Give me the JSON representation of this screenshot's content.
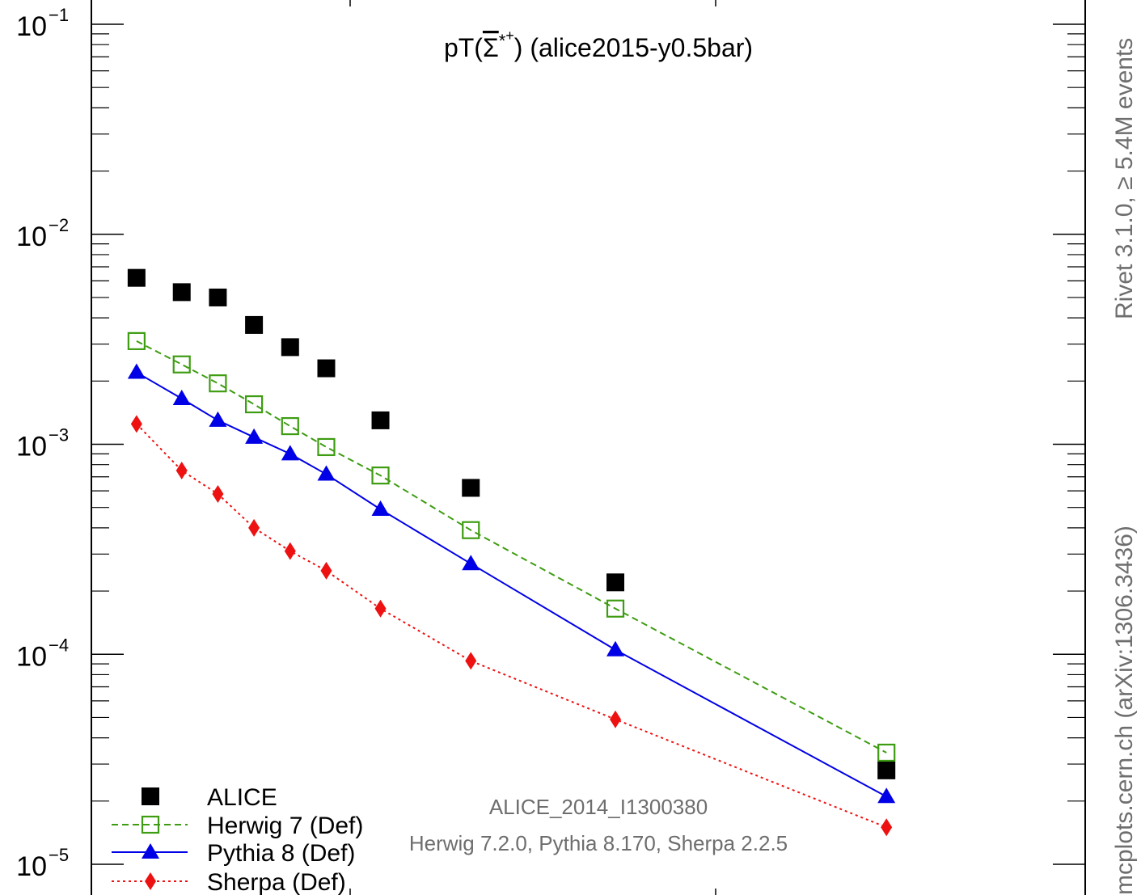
{
  "chart_data": {
    "type": "scatter",
    "title": "pT(Σ*⁺ bar) (alice2015-y0.5bar)",
    "title_parts": {
      "prefix": "pT(",
      "symbol": "Σ",
      "sup": "*",
      "charge": "+",
      "suffix": ") (alice2015-y0.5bar)"
    },
    "yscale": "log",
    "ylim": [
      1e-05,
      0.1
    ],
    "y_ticks": [
      {
        "base": "10",
        "exp": "−1",
        "value": 0.1
      },
      {
        "base": "10",
        "exp": "−2",
        "value": 0.01
      },
      {
        "base": "10",
        "exp": "−3",
        "value": 0.001
      },
      {
        "base": "10",
        "exp": "−4",
        "value": 0.0001
      },
      {
        "base": "10",
        "exp": "−5",
        "value": 1e-05
      }
    ],
    "xlim": [
      0,
      5.5
    ],
    "x": [
      0.25,
      0.5,
      0.7,
      0.9,
      1.1,
      1.3,
      1.6,
      2.1,
      2.9,
      4.4
    ],
    "series": [
      {
        "name": "ALICE",
        "style": "data",
        "color": "#000000",
        "values": [
          0.0062,
          0.0053,
          0.005,
          0.0037,
          0.0029,
          0.0023,
          0.0013,
          0.00062,
          0.00022,
          2.8e-05
        ]
      },
      {
        "name": "Herwig 7 (Def)",
        "style": "open-square-dashed",
        "color": "#3e9c12",
        "values": [
          0.0031,
          0.0024,
          0.00195,
          0.00155,
          0.00122,
          0.00097,
          0.00071,
          0.00039,
          0.000165,
          3.4e-05
        ]
      },
      {
        "name": "Pythia 8 (Def)",
        "style": "triangle-solid",
        "color": "#0000e6",
        "values": [
          0.0022,
          0.00165,
          0.0013,
          0.00108,
          0.0009,
          0.00072,
          0.00049,
          0.00027,
          0.000105,
          2.1e-05
        ]
      },
      {
        "name": "Sherpa (Def)",
        "style": "diamond-dotted",
        "color": "#ee1111",
        "values": [
          0.00125,
          0.00075,
          0.00058,
          0.0004,
          0.00031,
          0.00025,
          0.000165,
          9.3e-05,
          4.9e-05,
          1.5e-05
        ]
      }
    ],
    "legend_position": "bottom-left",
    "annotations": [
      "ALICE_2014_I1300380",
      "Herwig 7.2.0, Pythia 8.170, Sherpa 2.2.5"
    ],
    "side_labels": {
      "upper": "Rivet 3.1.0, ≥ 5.4M events",
      "lower": "mcplots.cern.ch (arXiv:1306.3436)"
    }
  }
}
